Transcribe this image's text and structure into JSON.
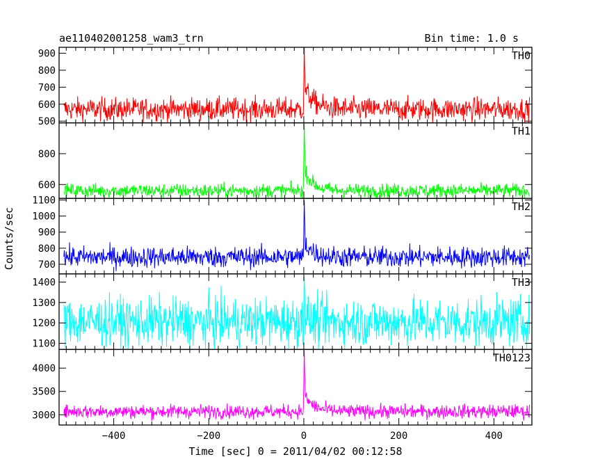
{
  "header": {
    "title": "ae110402001258_wam3_trn",
    "bin_time": "Bin time: 1.0 s"
  },
  "chart_data": {
    "type": "line",
    "title": "ae110402001258_wam3_trn",
    "xlabel": "Time [sec] 0 = 2011/04/02 00:12:58",
    "ylabel": "Counts/sec",
    "xlim": [
      -515,
      480
    ],
    "x_ticks": [
      -400,
      -200,
      0,
      200,
      400
    ],
    "x_tick_labels": [
      "−400",
      "−200",
      "0",
      "200",
      "400"
    ],
    "x_start": -505,
    "x_end": 475,
    "bin_seconds": 1.0,
    "grid": false,
    "panels": [
      {
        "name": "TH0",
        "color": "#ff0000",
        "ylim": [
          490,
          935
        ],
        "ticks": [
          500,
          600,
          700,
          800,
          900
        ],
        "baseline": 570,
        "noise": 34,
        "peak": 935,
        "post": 125,
        "decay": 20
      },
      {
        "name": "TH1",
        "color": "#00ff00",
        "ylim": [
          510,
          1000
        ],
        "ticks": [
          600,
          800
        ],
        "baseline": 560,
        "noise": 23,
        "peak": 995,
        "post": 130,
        "decay": 18
      },
      {
        "name": "TH2",
        "color": "#0000ff",
        "ylim": [
          640,
          1110
        ],
        "ticks": [
          700,
          800,
          900,
          1000,
          1100
        ],
        "baseline": 745,
        "noise": 33,
        "peak": 1100,
        "post": 90,
        "decay": 18
      },
      {
        "name": "TH3",
        "color": "#00ffff",
        "ylim": [
          1070,
          1440
        ],
        "ticks": [
          1100,
          1200,
          1300,
          1400
        ],
        "baseline": 1205,
        "noise": 60,
        "peak": 1430,
        "post": 30,
        "decay": 10
      },
      {
        "name": "TH0123",
        "color": "#ff00ff",
        "ylim": [
          2780,
          4400
        ],
        "ticks": [
          3000,
          3500,
          4000
        ],
        "baseline": 3070,
        "noise": 75,
        "peak": 4380,
        "post": 330,
        "decay": 20
      }
    ]
  }
}
